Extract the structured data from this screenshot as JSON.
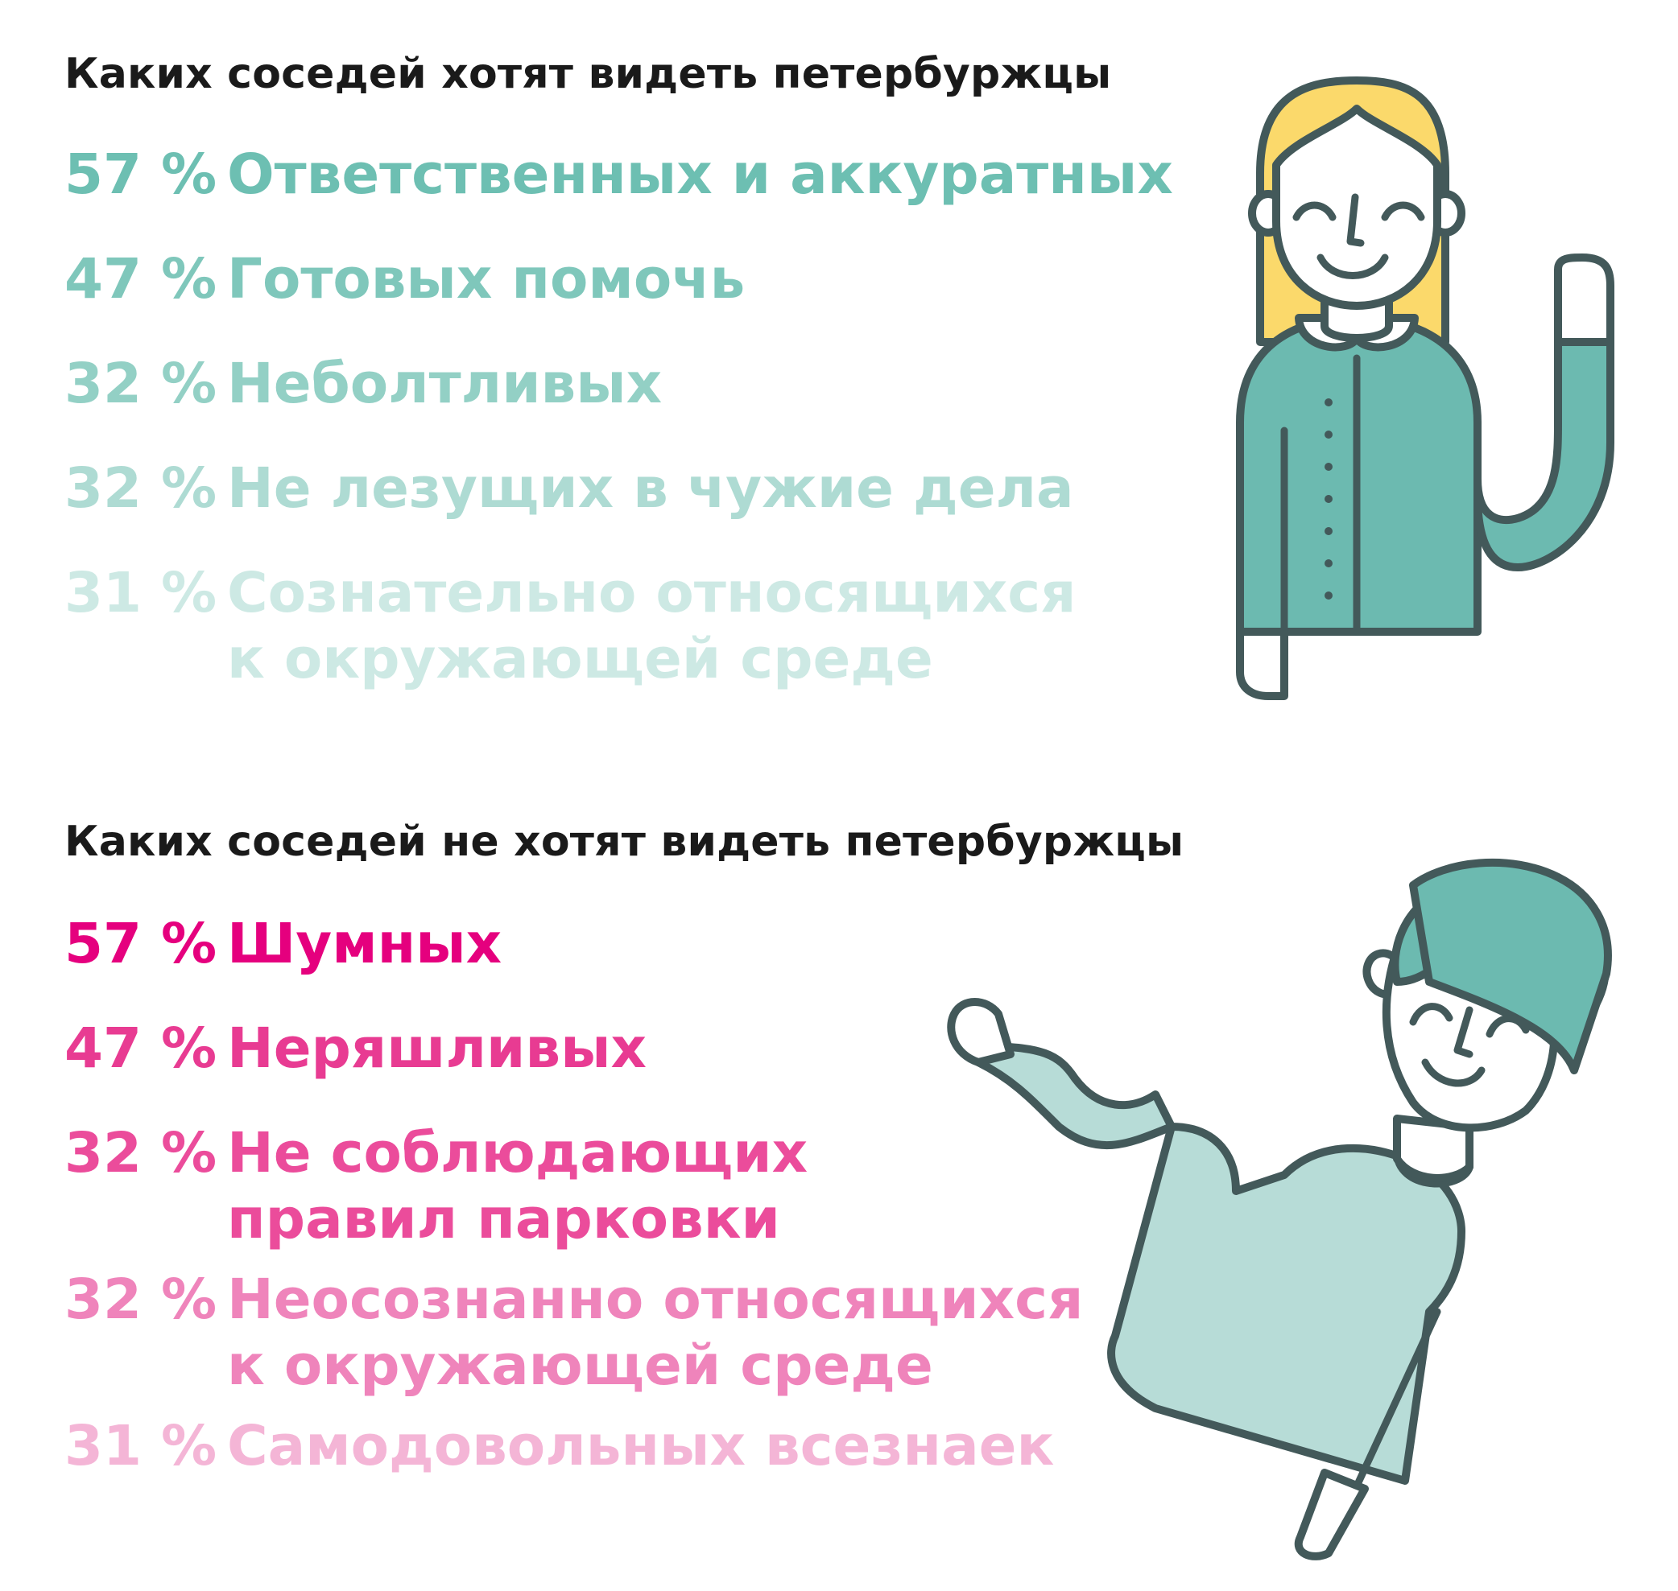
{
  "chart_data": [
    {
      "type": "bar",
      "title": "Каких соседей хотят видеть петербуржцы",
      "unit": "%",
      "categories": [
        [
          "Ответственных и аккуратных"
        ],
        [
          "Готовых помочь"
        ],
        [
          "Неболтливых"
        ],
        [
          "Не лезущих в чужие дела"
        ],
        [
          "Сознательно относящихся",
          "к окружающей среде"
        ]
      ],
      "values": [
        57,
        47,
        32,
        32,
        31
      ],
      "colors": [
        "#6dbfb2",
        "#7fc7bb",
        "#93d0c5",
        "#aedbd3",
        "#cde9e4"
      ]
    },
    {
      "type": "bar",
      "title": "Каких соседей не хотят видеть петербуржцы",
      "unit": "%",
      "categories": [
        [
          "Шумных"
        ],
        [
          "Неряшливых"
        ],
        [
          "Не соблюдающих",
          "правил парковки"
        ],
        [
          "Неосознанно относящихся",
          "к окружающей среде"
        ],
        [
          "Самодовольных всезнаек"
        ]
      ],
      "values": [
        57,
        47,
        32,
        32,
        31
      ],
      "colors": [
        "#e5007e",
        "#e83b92",
        "#eb4c9b",
        "#ef84bb",
        "#f4b5d6"
      ]
    }
  ],
  "illustration_colors": {
    "outline": "#43595a",
    "hair_woman": "#fbd96b",
    "jacket_woman": "#6cbab0",
    "hair_man": "#6cbab0",
    "sweater_man": "#b7dcd7",
    "skin": "#ffffff"
  }
}
